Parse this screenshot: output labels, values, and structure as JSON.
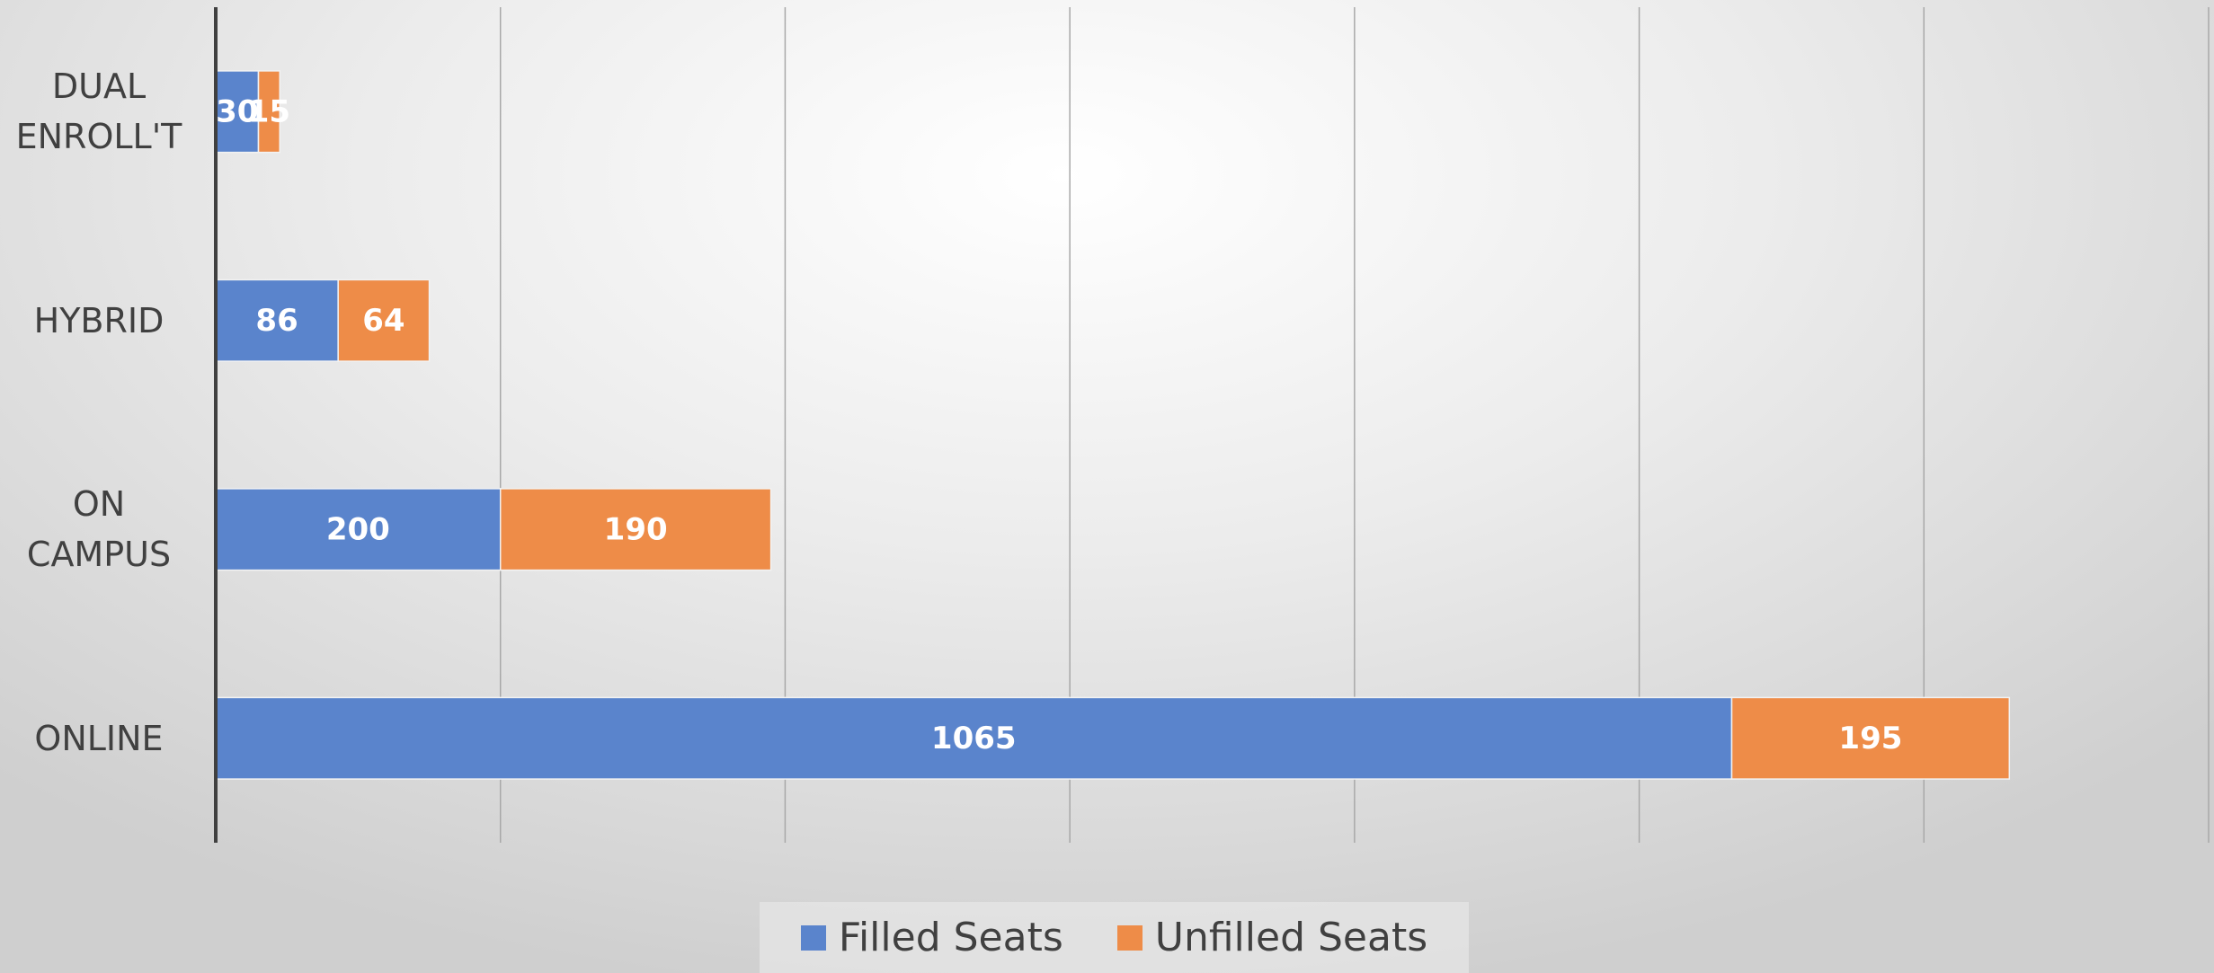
{
  "chart_data": {
    "type": "stacked_bar_horizontal",
    "categories": [
      "DUAL\nENROLL'T",
      "HYBRID",
      "ON\nCAMPUS",
      "ONLINE"
    ],
    "series": [
      {
        "name": "Filled Seats",
        "color": "#5a84cc",
        "values": [
          30,
          86,
          200,
          1065
        ]
      },
      {
        "name": "Unfilled Seats",
        "color": "#ee8c48",
        "values": [
          15,
          64,
          190,
          195
        ]
      }
    ],
    "xlim": [
      0,
      1400
    ],
    "xticks": [
      0,
      200,
      400,
      600,
      800,
      1000,
      1200,
      1400
    ],
    "grid": true,
    "legend": "bottom"
  }
}
